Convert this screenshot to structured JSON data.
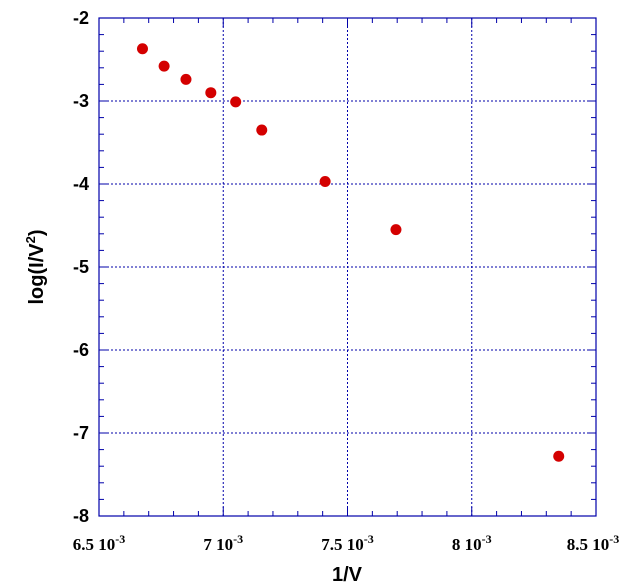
{
  "chart_data": {
    "type": "scatter",
    "title": "",
    "xlabel": "1/V",
    "ylabel_main": "log(I/V",
    "ylabel_sup": "2",
    "ylabel_tail": ")",
    "xlim": [
      0.0065,
      0.0085
    ],
    "ylim": [
      -8,
      -2
    ],
    "x_ticks": [
      {
        "value": 0.0065,
        "mant": "6.5 10",
        "exp": "-3"
      },
      {
        "value": 0.007,
        "mant": "7 10",
        "exp": "-3"
      },
      {
        "value": 0.0075,
        "mant": "7.5 10",
        "exp": "-3"
      },
      {
        "value": 0.008,
        "mant": "8 10",
        "exp": "-3"
      },
      {
        "value": 0.0085,
        "mant": "8.5 10",
        "exp": "-3"
      }
    ],
    "y_ticks": [
      {
        "value": -2,
        "label": "-2"
      },
      {
        "value": -3,
        "label": "-3"
      },
      {
        "value": -4,
        "label": "-4"
      },
      {
        "value": -5,
        "label": "-5"
      },
      {
        "value": -6,
        "label": "-6"
      },
      {
        "value": -7,
        "label": "-7"
      },
      {
        "value": -8,
        "label": "-8"
      }
    ],
    "grid": true,
    "points": [
      {
        "x": 0.006675,
        "y": -2.37
      },
      {
        "x": 0.006762,
        "y": -2.58
      },
      {
        "x": 0.00685,
        "y": -2.74
      },
      {
        "x": 0.00695,
        "y": -2.9
      },
      {
        "x": 0.00705,
        "y": -3.01
      },
      {
        "x": 0.007155,
        "y": -3.35
      },
      {
        "x": 0.00741,
        "y": -3.97
      },
      {
        "x": 0.007695,
        "y": -4.55
      },
      {
        "x": 0.00835,
        "y": -7.28
      }
    ],
    "colors": {
      "points": "#d40000",
      "grid": "#0000aa",
      "frame": "#0000aa"
    }
  }
}
